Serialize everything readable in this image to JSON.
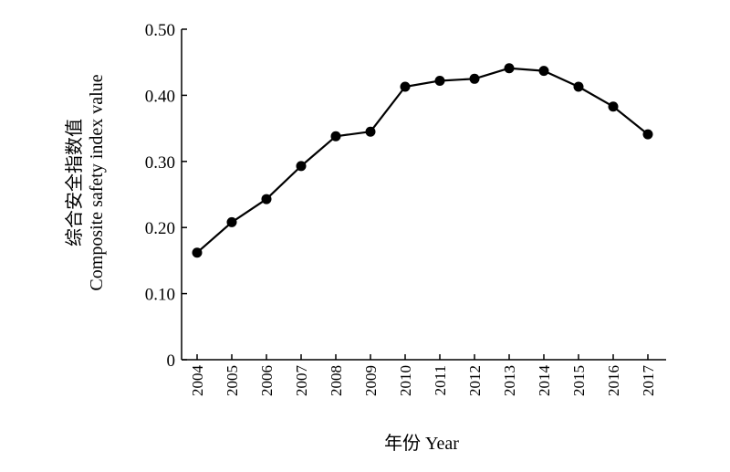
{
  "chart_data": {
    "type": "line",
    "categories": [
      "2004",
      "2005",
      "2006",
      "2007",
      "2008",
      "2009",
      "2010",
      "2011",
      "2012",
      "2013",
      "2014",
      "2015",
      "2016",
      "2017"
    ],
    "series": [
      {
        "values": [
          0.162,
          0.208,
          0.243,
          0.293,
          0.338,
          0.345,
          0.413,
          0.422,
          0.425,
          0.441,
          0.437,
          0.413,
          0.383,
          0.341
        ]
      }
    ],
    "xlabel": "年份 Year",
    "ylabel_line1": "综合安全指数值",
    "ylabel_line2": "Composite safety index value",
    "ylim": [
      0,
      0.5
    ],
    "yticks": [
      "0",
      "0.10",
      "0.20",
      "0.30",
      "0.40",
      "0.50"
    ],
    "grid": false,
    "legend": "none",
    "colors": {
      "line": "#000000",
      "marker": "#000000",
      "axis": "#000000"
    }
  }
}
